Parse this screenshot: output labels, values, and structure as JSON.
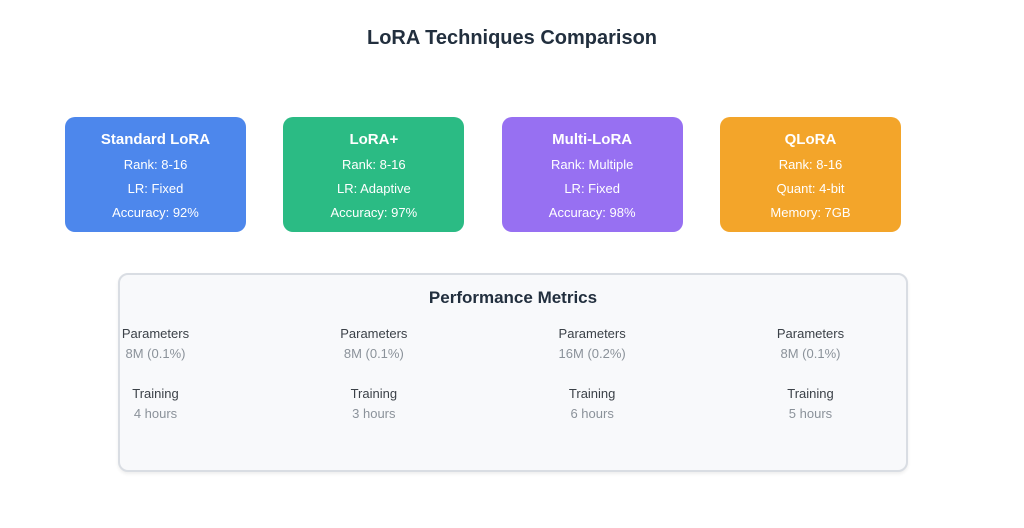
{
  "page": {
    "title": "LoRA Techniques Comparison"
  },
  "cards": [
    {
      "name": "Standard LoRA",
      "color": "#4d87ec",
      "lines": [
        "Rank: 8-16",
        "LR: Fixed",
        "Accuracy: 92%"
      ]
    },
    {
      "name": "LoRA+",
      "color": "#2bbb84",
      "lines": [
        "Rank: 8-16",
        "LR: Adaptive",
        "Accuracy: 97%"
      ]
    },
    {
      "name": "Multi-LoRA",
      "color": "#9770f2",
      "lines": [
        "Rank: Multiple",
        "LR: Fixed",
        "Accuracy: 98%"
      ]
    },
    {
      "name": "QLoRA",
      "color": "#f3a52a",
      "lines": [
        "Rank: 8-16",
        "Quant: 4-bit",
        "Memory: 7GB"
      ]
    }
  ],
  "metrics_panel": {
    "title": "Performance Metrics",
    "columns": [
      {
        "parameters_label": "Parameters",
        "parameters_value": "8M (0.1%)",
        "training_label": "Training",
        "training_value": "4 hours"
      },
      {
        "parameters_label": "Parameters",
        "parameters_value": "8M (0.1%)",
        "training_label": "Training",
        "training_value": "3 hours"
      },
      {
        "parameters_label": "Parameters",
        "parameters_value": "16M (0.2%)",
        "training_label": "Training",
        "training_value": "6 hours"
      },
      {
        "parameters_label": "Parameters",
        "parameters_value": "8M (0.1%)",
        "training_label": "Training",
        "training_value": "5 hours"
      }
    ]
  },
  "colors": {
    "card_text": "#ffffff",
    "heading_text": "#222f3e",
    "metric_label_text": "#3b4148",
    "metric_value_text": "#8b929a",
    "panel_background": "#f8f9fb",
    "panel_border": "#d9dde3"
  }
}
